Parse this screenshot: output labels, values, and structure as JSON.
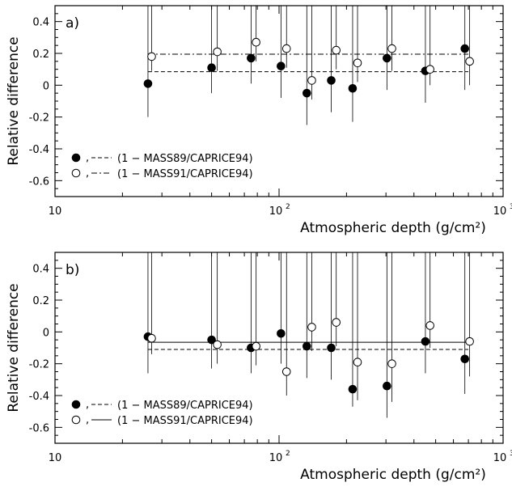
{
  "chart_data": [
    {
      "type": "scatter",
      "panel_label": "a)",
      "xlabel": "Atmospheric depth (g/cm²)",
      "ylabel": "Relative difference",
      "xscale": "log",
      "xlim": [
        10,
        1000
      ],
      "ylim": [
        -0.7,
        0.5
      ],
      "x_ticks": [
        10,
        100,
        1000
      ],
      "x_tick_labels": [
        [
          "10",
          ""
        ],
        [
          "10",
          "2"
        ],
        [
          "10",
          "3"
        ]
      ],
      "y_ticks": [
        -0.6,
        -0.4,
        -0.2,
        0,
        0.2,
        0.4
      ],
      "y_tick_labels": [
        "-0.6",
        "-0.4",
        "-0.2",
        "0",
        "0.2",
        "0.4"
      ],
      "legend_position": "bottom-left",
      "series": [
        {
          "name": "(1 − MASS89/CAPRICE94)",
          "marker": "filled-circle",
          "fit_line_style": "dashed",
          "fit_value": 0.085,
          "fit_range": [
            26,
            700
          ],
          "x": [
            26,
            50,
            75,
            102,
            133,
            171,
            213,
            303,
            450,
            675
          ],
          "y": [
            0.01,
            0.11,
            0.17,
            0.12,
            -0.05,
            0.03,
            -0.02,
            0.17,
            0.09,
            0.23
          ],
          "err": [
            0.21,
            0.16,
            0.16,
            0.2,
            0.2,
            0.2,
            0.21,
            0.2,
            0.2,
            0.26
          ]
        },
        {
          "name": "(1 − MASS91/CAPRICE94)",
          "marker": "open-circle",
          "fit_line_style": "dash-dot",
          "fit_value": 0.195,
          "fit_range": [
            26,
            700
          ],
          "x": [
            27,
            53,
            79,
            108,
            140,
            180,
            224,
            319,
            472,
            709
          ],
          "y": [
            0.18,
            0.21,
            0.27,
            0.23,
            0.03,
            0.22,
            0.14,
            0.23,
            0.1,
            0.15
          ],
          "err": [
            0.09,
            0.12,
            0.12,
            0.12,
            0.12,
            0.12,
            0.12,
            0.14,
            0.1,
            0.15
          ]
        }
      ]
    },
    {
      "type": "scatter",
      "panel_label": "b)",
      "xlabel": "Atmospheric depth (g/cm²)",
      "ylabel": "Relative difference",
      "xscale": "log",
      "xlim": [
        10,
        1000
      ],
      "ylim": [
        -0.7,
        0.5
      ],
      "x_ticks": [
        10,
        100,
        1000
      ],
      "x_tick_labels": [
        [
          "10",
          ""
        ],
        [
          "10",
          "2"
        ],
        [
          "10",
          "3"
        ]
      ],
      "y_ticks": [
        -0.6,
        -0.4,
        -0.2,
        0,
        0.2,
        0.4
      ],
      "y_tick_labels": [
        "-0.6",
        "-0.4",
        "-0.2",
        "0",
        "0.2",
        "0.4"
      ],
      "legend_position": "bottom-left",
      "series": [
        {
          "name": "(1 − MASS89/CAPRICE94)",
          "marker": "filled-circle",
          "fit_line_style": "dashed",
          "fit_value": -0.11,
          "fit_range": [
            26,
            700
          ],
          "x": [
            26,
            50,
            75,
            102,
            133,
            171,
            213,
            303,
            450,
            675
          ],
          "y": [
            -0.03,
            -0.05,
            -0.1,
            -0.01,
            -0.09,
            -0.1,
            -0.36,
            -0.34,
            -0.06,
            -0.17
          ],
          "err": [
            0.23,
            0.18,
            0.16,
            0.19,
            0.2,
            0.2,
            0.11,
            0.2,
            0.2,
            0.22
          ]
        },
        {
          "name": "(1 − MASS91/CAPRICE94)",
          "marker": "open-circle",
          "fit_line_style": "solid",
          "fit_value": -0.065,
          "fit_range": [
            26,
            700
          ],
          "x": [
            27,
            53,
            79,
            108,
            140,
            180,
            224,
            319,
            472,
            709
          ],
          "y": [
            -0.04,
            -0.08,
            -0.09,
            -0.25,
            0.03,
            0.06,
            -0.19,
            -0.2,
            0.04,
            -0.06
          ],
          "err": [
            0.1,
            0.12,
            0.12,
            0.15,
            0.15,
            0.15,
            0.24,
            0.24,
            0.14,
            0.22
          ]
        }
      ]
    }
  ]
}
